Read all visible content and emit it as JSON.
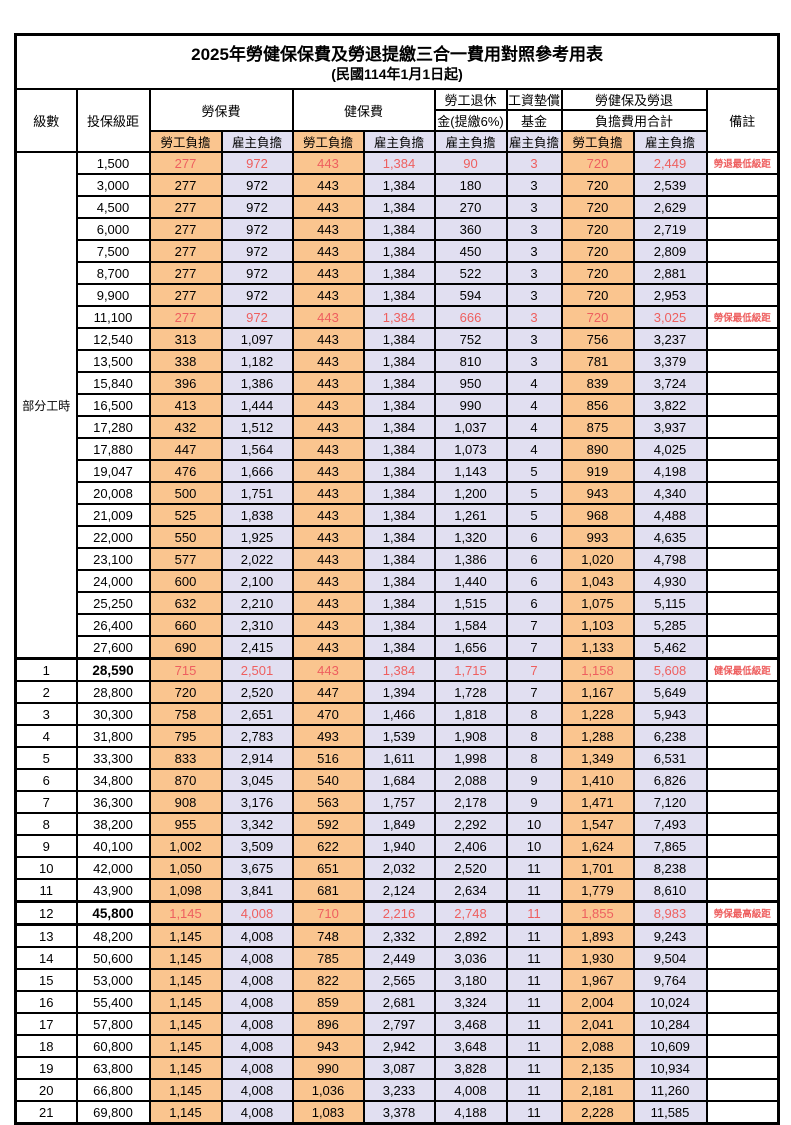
{
  "title": "2025年勞健保保費及勞退提繳三合一費用對照參考用表",
  "subtitle": "(民國114年1月1日起)",
  "columns": {
    "level": "級數",
    "bracket": "投保級距",
    "labor_insurance": "勞保費",
    "health_insurance": "健保費",
    "pension_top": "勞工退休",
    "pension_bottom": "金(提繳6%)",
    "wage_fund_top": "工資墊償",
    "wage_fund_bottom": "基金",
    "total_top": "勞健保及勞退",
    "total_bottom": "負擔費用合計",
    "remarks": "備註",
    "employee_burden": "勞工負擔",
    "employer_burden": "雇主負擔"
  },
  "part_time_group_label": "部分工時",
  "colors": {
    "employee_bg": "#FAC58F",
    "employer_bg": "#E1DFF1",
    "highlight_red": "#EE5F5F"
  },
  "rows": [
    {
      "level": "",
      "bracket": "1,500",
      "values": [
        "277",
        "972",
        "443",
        "1,384",
        "90",
        "3",
        "720",
        "2,449"
      ],
      "remark": "勞退最低級距",
      "highlight": true
    },
    {
      "level": "",
      "bracket": "3,000",
      "values": [
        "277",
        "972",
        "443",
        "1,384",
        "180",
        "3",
        "720",
        "2,539"
      ],
      "remark": "",
      "highlight": false
    },
    {
      "level": "",
      "bracket": "4,500",
      "values": [
        "277",
        "972",
        "443",
        "1,384",
        "270",
        "3",
        "720",
        "2,629"
      ],
      "remark": "",
      "highlight": false
    },
    {
      "level": "",
      "bracket": "6,000",
      "values": [
        "277",
        "972",
        "443",
        "1,384",
        "360",
        "3",
        "720",
        "2,719"
      ],
      "remark": "",
      "highlight": false
    },
    {
      "level": "",
      "bracket": "7,500",
      "values": [
        "277",
        "972",
        "443",
        "1,384",
        "450",
        "3",
        "720",
        "2,809"
      ],
      "remark": "",
      "highlight": false
    },
    {
      "level": "",
      "bracket": "8,700",
      "values": [
        "277",
        "972",
        "443",
        "1,384",
        "522",
        "3",
        "720",
        "2,881"
      ],
      "remark": "",
      "highlight": false
    },
    {
      "level": "",
      "bracket": "9,900",
      "values": [
        "277",
        "972",
        "443",
        "1,384",
        "594",
        "3",
        "720",
        "2,953"
      ],
      "remark": "",
      "highlight": false
    },
    {
      "level": "",
      "bracket": "11,100",
      "values": [
        "277",
        "972",
        "443",
        "1,384",
        "666",
        "3",
        "720",
        "3,025"
      ],
      "remark": "勞保最低級距",
      "highlight": true
    },
    {
      "level": "",
      "bracket": "12,540",
      "values": [
        "313",
        "1,097",
        "443",
        "1,384",
        "752",
        "3",
        "756",
        "3,237"
      ],
      "remark": "",
      "highlight": false
    },
    {
      "level": "",
      "bracket": "13,500",
      "values": [
        "338",
        "1,182",
        "443",
        "1,384",
        "810",
        "3",
        "781",
        "3,379"
      ],
      "remark": "",
      "highlight": false
    },
    {
      "level": "",
      "bracket": "15,840",
      "values": [
        "396",
        "1,386",
        "443",
        "1,384",
        "950",
        "4",
        "839",
        "3,724"
      ],
      "remark": "",
      "highlight": false
    },
    {
      "level": "",
      "bracket": "16,500",
      "values": [
        "413",
        "1,444",
        "443",
        "1,384",
        "990",
        "4",
        "856",
        "3,822"
      ],
      "remark": "",
      "highlight": false
    },
    {
      "level": "",
      "bracket": "17,280",
      "values": [
        "432",
        "1,512",
        "443",
        "1,384",
        "1,037",
        "4",
        "875",
        "3,937"
      ],
      "remark": "",
      "highlight": false
    },
    {
      "level": "",
      "bracket": "17,880",
      "values": [
        "447",
        "1,564",
        "443",
        "1,384",
        "1,073",
        "4",
        "890",
        "4,025"
      ],
      "remark": "",
      "highlight": false
    },
    {
      "level": "",
      "bracket": "19,047",
      "values": [
        "476",
        "1,666",
        "443",
        "1,384",
        "1,143",
        "5",
        "919",
        "4,198"
      ],
      "remark": "",
      "highlight": false
    },
    {
      "level": "",
      "bracket": "20,008",
      "values": [
        "500",
        "1,751",
        "443",
        "1,384",
        "1,200",
        "5",
        "943",
        "4,340"
      ],
      "remark": "",
      "highlight": false
    },
    {
      "level": "",
      "bracket": "21,009",
      "values": [
        "525",
        "1,838",
        "443",
        "1,384",
        "1,261",
        "5",
        "968",
        "4,488"
      ],
      "remark": "",
      "highlight": false
    },
    {
      "level": "",
      "bracket": "22,000",
      "values": [
        "550",
        "1,925",
        "443",
        "1,384",
        "1,320",
        "6",
        "993",
        "4,635"
      ],
      "remark": "",
      "highlight": false
    },
    {
      "level": "",
      "bracket": "23,100",
      "values": [
        "577",
        "2,022",
        "443",
        "1,384",
        "1,386",
        "6",
        "1,020",
        "4,798"
      ],
      "remark": "",
      "highlight": false
    },
    {
      "level": "",
      "bracket": "24,000",
      "values": [
        "600",
        "2,100",
        "443",
        "1,384",
        "1,440",
        "6",
        "1,043",
        "4,930"
      ],
      "remark": "",
      "highlight": false
    },
    {
      "level": "",
      "bracket": "25,250",
      "values": [
        "632",
        "2,210",
        "443",
        "1,384",
        "1,515",
        "6",
        "1,075",
        "5,115"
      ],
      "remark": "",
      "highlight": false
    },
    {
      "level": "",
      "bracket": "26,400",
      "values": [
        "660",
        "2,310",
        "443",
        "1,384",
        "1,584",
        "7",
        "1,103",
        "5,285"
      ],
      "remark": "",
      "highlight": false
    },
    {
      "level": "",
      "bracket": "27,600",
      "values": [
        "690",
        "2,415",
        "443",
        "1,384",
        "1,656",
        "7",
        "1,133",
        "5,462"
      ],
      "remark": "",
      "highlight": false
    },
    {
      "level": "1",
      "bracket": "28,590",
      "values": [
        "715",
        "2,501",
        "443",
        "1,384",
        "1,715",
        "7",
        "1,158",
        "5,608"
      ],
      "remark": "健保最低級距",
      "highlight": true
    },
    {
      "level": "2",
      "bracket": "28,800",
      "values": [
        "720",
        "2,520",
        "447",
        "1,394",
        "1,728",
        "7",
        "1,167",
        "5,649"
      ],
      "remark": "",
      "highlight": false
    },
    {
      "level": "3",
      "bracket": "30,300",
      "values": [
        "758",
        "2,651",
        "470",
        "1,466",
        "1,818",
        "8",
        "1,228",
        "5,943"
      ],
      "remark": "",
      "highlight": false
    },
    {
      "level": "4",
      "bracket": "31,800",
      "values": [
        "795",
        "2,783",
        "493",
        "1,539",
        "1,908",
        "8",
        "1,288",
        "6,238"
      ],
      "remark": "",
      "highlight": false
    },
    {
      "level": "5",
      "bracket": "33,300",
      "values": [
        "833",
        "2,914",
        "516",
        "1,611",
        "1,998",
        "8",
        "1,349",
        "6,531"
      ],
      "remark": "",
      "highlight": false
    },
    {
      "level": "6",
      "bracket": "34,800",
      "values": [
        "870",
        "3,045",
        "540",
        "1,684",
        "2,088",
        "9",
        "1,410",
        "6,826"
      ],
      "remark": "",
      "highlight": false
    },
    {
      "level": "7",
      "bracket": "36,300",
      "values": [
        "908",
        "3,176",
        "563",
        "1,757",
        "2,178",
        "9",
        "1,471",
        "7,120"
      ],
      "remark": "",
      "highlight": false
    },
    {
      "level": "8",
      "bracket": "38,200",
      "values": [
        "955",
        "3,342",
        "592",
        "1,849",
        "2,292",
        "10",
        "1,547",
        "7,493"
      ],
      "remark": "",
      "highlight": false
    },
    {
      "level": "9",
      "bracket": "40,100",
      "values": [
        "1,002",
        "3,509",
        "622",
        "1,940",
        "2,406",
        "10",
        "1,624",
        "7,865"
      ],
      "remark": "",
      "highlight": false
    },
    {
      "level": "10",
      "bracket": "42,000",
      "values": [
        "1,050",
        "3,675",
        "651",
        "2,032",
        "2,520",
        "11",
        "1,701",
        "8,238"
      ],
      "remark": "",
      "highlight": false
    },
    {
      "level": "11",
      "bracket": "43,900",
      "values": [
        "1,098",
        "3,841",
        "681",
        "2,124",
        "2,634",
        "11",
        "1,779",
        "8,610"
      ],
      "remark": "",
      "highlight": false
    },
    {
      "level": "12",
      "bracket": "45,800",
      "values": [
        "1,145",
        "4,008",
        "710",
        "2,216",
        "2,748",
        "11",
        "1,855",
        "8,983"
      ],
      "remark": "勞保最高級距",
      "highlight": true
    },
    {
      "level": "13",
      "bracket": "48,200",
      "values": [
        "1,145",
        "4,008",
        "748",
        "2,332",
        "2,892",
        "11",
        "1,893",
        "9,243"
      ],
      "remark": "",
      "highlight": false
    },
    {
      "level": "14",
      "bracket": "50,600",
      "values": [
        "1,145",
        "4,008",
        "785",
        "2,449",
        "3,036",
        "11",
        "1,930",
        "9,504"
      ],
      "remark": "",
      "highlight": false
    },
    {
      "level": "15",
      "bracket": "53,000",
      "values": [
        "1,145",
        "4,008",
        "822",
        "2,565",
        "3,180",
        "11",
        "1,967",
        "9,764"
      ],
      "remark": "",
      "highlight": false
    },
    {
      "level": "16",
      "bracket": "55,400",
      "values": [
        "1,145",
        "4,008",
        "859",
        "2,681",
        "3,324",
        "11",
        "2,004",
        "10,024"
      ],
      "remark": "",
      "highlight": false
    },
    {
      "level": "17",
      "bracket": "57,800",
      "values": [
        "1,145",
        "4,008",
        "896",
        "2,797",
        "3,468",
        "11",
        "2,041",
        "10,284"
      ],
      "remark": "",
      "highlight": false
    },
    {
      "level": "18",
      "bracket": "60,800",
      "values": [
        "1,145",
        "4,008",
        "943",
        "2,942",
        "3,648",
        "11",
        "2,088",
        "10,609"
      ],
      "remark": "",
      "highlight": false
    },
    {
      "level": "19",
      "bracket": "63,800",
      "values": [
        "1,145",
        "4,008",
        "990",
        "3,087",
        "3,828",
        "11",
        "2,135",
        "10,934"
      ],
      "remark": "",
      "highlight": false
    },
    {
      "level": "20",
      "bracket": "66,800",
      "values": [
        "1,145",
        "4,008",
        "1,036",
        "3,233",
        "4,008",
        "11",
        "2,181",
        "11,260"
      ],
      "remark": "",
      "highlight": false
    },
    {
      "level": "21",
      "bracket": "69,800",
      "values": [
        "1,145",
        "4,008",
        "1,083",
        "3,378",
        "4,188",
        "11",
        "2,228",
        "11,585"
      ],
      "remark": "",
      "highlight": false
    }
  ]
}
